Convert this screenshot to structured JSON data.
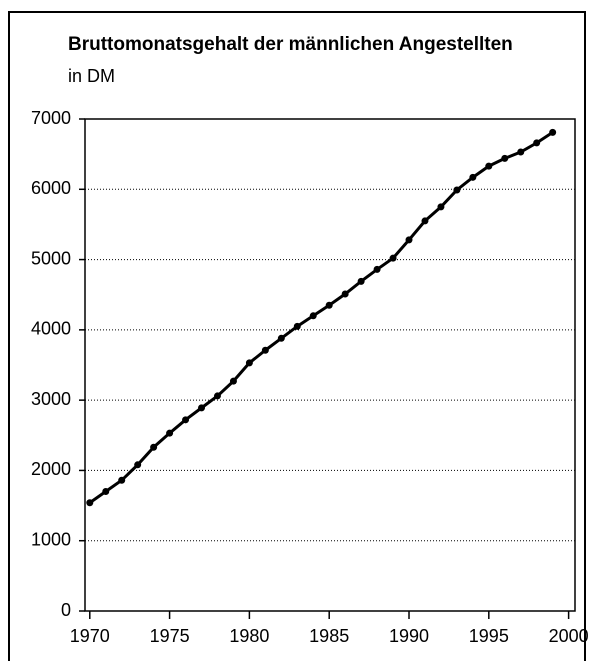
{
  "chart_data": {
    "type": "line",
    "title": "Bruttomonatsgehalt der männlichen Angestellten",
    "subtitle": "in DM",
    "x": [
      1970,
      1971,
      1972,
      1973,
      1974,
      1975,
      1976,
      1977,
      1978,
      1979,
      1980,
      1981,
      1982,
      1983,
      1984,
      1985,
      1986,
      1987,
      1988,
      1989,
      1990,
      1991,
      1992,
      1993,
      1994,
      1995,
      1996,
      1997,
      1998,
      1999
    ],
    "series": [
      {
        "color": "#000000",
        "values": [
          1540,
          1700,
          1860,
          2080,
          2330,
          2530,
          2720,
          2890,
          3060,
          3270,
          3530,
          3710,
          3880,
          4050,
          4200,
          4350,
          4510,
          4690,
          4860,
          5020,
          5280,
          5550,
          5750,
          5990,
          6170,
          6330,
          6440,
          6530,
          6660,
          6810
        ]
      }
    ],
    "xlim": [
      1969.7,
      2000.4
    ],
    "xticks": [
      1970,
      1975,
      1980,
      1985,
      1990,
      1995,
      2000
    ],
    "ylim": [
      0,
      7000
    ],
    "yticks": [
      0,
      1000,
      2000,
      3000,
      4000,
      5000,
      6000,
      7000
    ],
    "grid": true
  }
}
